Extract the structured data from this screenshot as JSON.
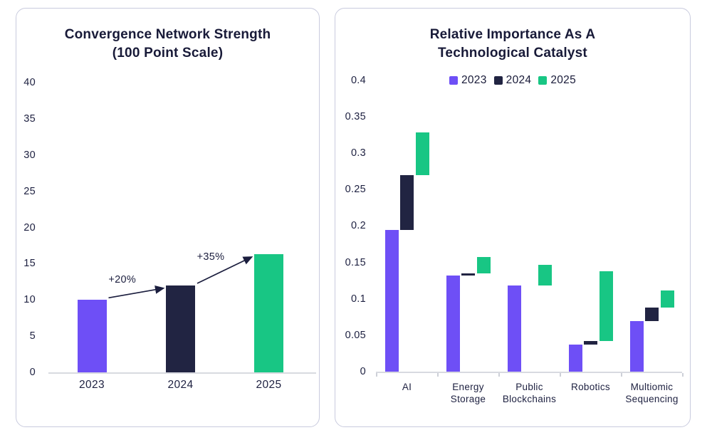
{
  "colors": {
    "purple": "#6e4ff6",
    "navy": "#212442",
    "green": "#18c684",
    "title_text": "#181a38",
    "axis_line": "#d8dae0",
    "card_border": "#c9cbde",
    "arrow": "#1b1e3e"
  },
  "chart_data": [
    {
      "type": "bar",
      "title": "Convergence Network Strength (100 Point Scale)",
      "title_lines": [
        "Convergence Network Strength",
        "(100 Point Scale)"
      ],
      "categories": [
        "2023",
        "2024",
        "2025"
      ],
      "values": [
        10,
        12,
        16.3
      ],
      "bar_colors": [
        "#6e4ff6",
        "#212442",
        "#18c684"
      ],
      "ylim": [
        0,
        40
      ],
      "yticks": [
        0,
        5,
        10,
        15,
        20,
        25,
        30,
        35,
        40
      ],
      "ytick_labels": [
        "0",
        "5",
        "10",
        "15",
        "20",
        "25",
        "30",
        "35",
        "40"
      ],
      "grid": false,
      "legend": null,
      "annotations": [
        {
          "label": "+20%",
          "from": "2023",
          "to": "2024"
        },
        {
          "label": "+35%",
          "from": "2024",
          "to": "2025"
        }
      ]
    },
    {
      "type": "bar",
      "subtype": "floating-segments-waterfall",
      "title": "Relative Importance As A Technological Catalyst",
      "title_lines": [
        "Relative Importance As A",
        "Technological Catalyst"
      ],
      "categories": [
        "AI",
        "Energy Storage",
        "Public Blockchains",
        "Robotics",
        "Multiomic Sequencing"
      ],
      "category_label_lines": [
        [
          "AI"
        ],
        [
          "Energy",
          "Storage"
        ],
        [
          "Public",
          "Blockchains"
        ],
        [
          "Robotics"
        ],
        [
          "Multiomic",
          "Sequencing"
        ]
      ],
      "legend": [
        {
          "label": "2023",
          "color": "#6e4ff6"
        },
        {
          "label": "2024",
          "color": "#212442"
        },
        {
          "label": "2025",
          "color": "#18c684"
        }
      ],
      "legend_position": "top-center",
      "series": [
        {
          "name": "2023",
          "color": "#6e4ff6",
          "ranges": [
            [
              0,
              0.195
            ],
            [
              0,
              0.132
            ],
            [
              0,
              0.118
            ],
            [
              0,
              0.037
            ],
            [
              0,
              0.069
            ]
          ]
        },
        {
          "name": "2024",
          "color": "#212442",
          "ranges": [
            [
              0.195,
              0.27
            ],
            [
              0.132,
              0.135
            ],
            [
              0.118,
              0.118
            ],
            [
              0.037,
              0.042
            ],
            [
              0.069,
              0.088
            ]
          ]
        },
        {
          "name": "2025",
          "color": "#18c684",
          "ranges": [
            [
              0.27,
              0.328
            ],
            [
              0.135,
              0.157
            ],
            [
              0.118,
              0.147
            ],
            [
              0.042,
              0.138
            ],
            [
              0.088,
              0.111
            ]
          ]
        }
      ],
      "ylim": [
        0,
        0.4
      ],
      "yticks": [
        0,
        0.05,
        0.1,
        0.15,
        0.2,
        0.25,
        0.3,
        0.35,
        0.4
      ],
      "ytick_labels": [
        "0",
        "0.05",
        "0.1",
        "0.15",
        "0.2",
        "0.25",
        "0.3",
        "0.35",
        "0.4"
      ],
      "grid": false
    }
  ]
}
